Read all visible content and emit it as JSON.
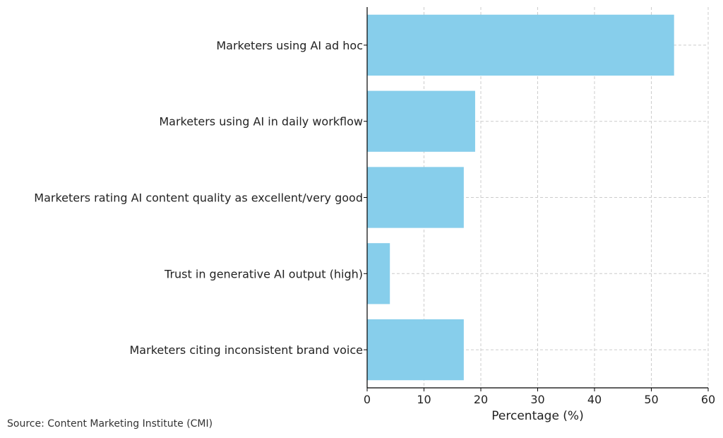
{
  "chart_data": {
    "type": "bar",
    "orientation": "horizontal",
    "categories": [
      "Marketers using AI ad hoc",
      "Marketers using AI in daily workflow",
      "Marketers rating AI content quality as excellent/very good",
      "Trust in generative AI output (high)",
      "Marketers citing inconsistent brand voice"
    ],
    "values": [
      54,
      19,
      17,
      4,
      17
    ],
    "title": "",
    "xlabel": "Percentage (%)",
    "ylabel": "",
    "xlim": [
      0,
      60
    ],
    "xticks": [
      0,
      10,
      20,
      30,
      40,
      50,
      60
    ],
    "grid": true,
    "bar_color": "#87ceeb"
  },
  "footer": {
    "source": "Source: Content Marketing Institute (CMI)"
  }
}
